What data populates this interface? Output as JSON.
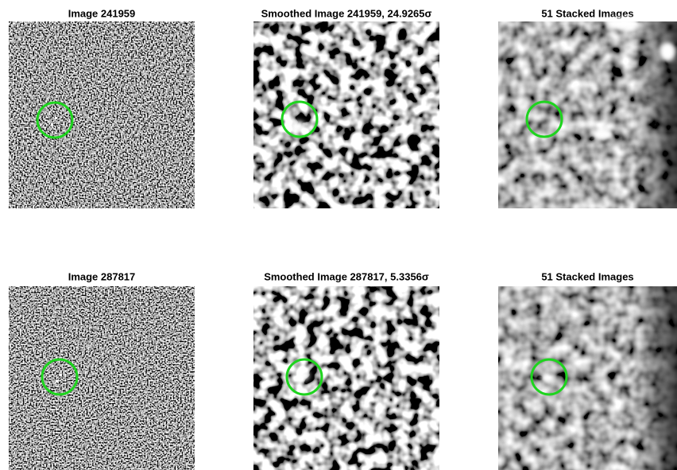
{
  "panels": [
    {
      "title": "Image 241959"
    },
    {
      "title": "Smoothed Image 241959, 24.9265σ"
    },
    {
      "title": "51 Stacked Images"
    },
    {
      "title": "Image 287817"
    },
    {
      "title": "Smoothed Image 287817, 5.3356σ"
    },
    {
      "title": "51 Stacked Images"
    }
  ]
}
